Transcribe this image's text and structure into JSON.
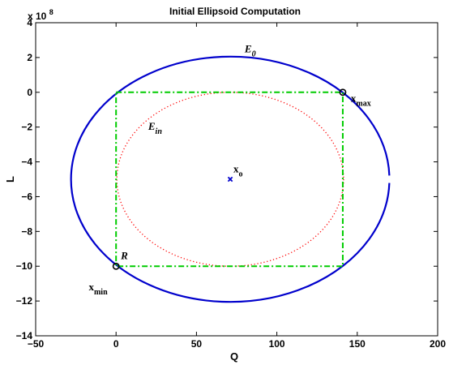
{
  "chart_data": {
    "type": "line",
    "title": "Initial Ellipsoid Computation",
    "xlabel": "Q",
    "ylabel": "L",
    "y_multiplier_label": {
      "base": "x 10",
      "exponent": "8"
    },
    "xlim": [
      -50,
      200
    ],
    "ylim": [
      -14,
      4
    ],
    "x_ticks": [
      -50,
      0,
      50,
      100,
      150,
      200
    ],
    "y_ticks": [
      -14,
      -12,
      -10,
      -8,
      -6,
      -4,
      -2,
      0,
      2,
      4
    ],
    "x_tick_labels": [
      "−50",
      "0",
      "50",
      "100",
      "150",
      "200"
    ],
    "y_tick_labels": [
      "−14",
      "−12",
      "−10",
      "−8",
      "−6",
      "−4",
      "−2",
      "0",
      "2",
      "4"
    ],
    "grid": false,
    "series": [
      {
        "name": "E0",
        "kind": "ellipse",
        "center": [
          71,
          -5
        ],
        "semi_axes": [
          99,
          7.05
        ],
        "gap_at_right": true,
        "color": "#0000cc",
        "style": "solid"
      },
      {
        "name": "Ein",
        "kind": "ellipse",
        "center": [
          71,
          -5
        ],
        "semi_axes": [
          70.5,
          5
        ],
        "color": "#ff0000",
        "style": "dotted"
      },
      {
        "name": "box",
        "kind": "rectangle",
        "x_range": [
          0,
          141
        ],
        "y_range": [
          -10,
          0
        ],
        "color": "#00cc00",
        "style": "dash-dot"
      }
    ],
    "points": [
      {
        "name": "xmax",
        "x": 141,
        "y": 0,
        "marker": "circle",
        "color": "#000000"
      },
      {
        "name": "xmin",
        "x": 0,
        "y": -10,
        "marker": "circle",
        "color": "#000000"
      },
      {
        "name": "xo",
        "x": 71,
        "y": -5,
        "marker": "x",
        "color": "#0000cc"
      }
    ],
    "annotations": [
      {
        "id": "E0",
        "base": "E",
        "sub": "0",
        "x": 80,
        "y": 2.3,
        "italic": true
      },
      {
        "id": "Ein",
        "base": "E",
        "sub": "in",
        "x": 20,
        "y": -2.15,
        "italic": true
      },
      {
        "id": "xmax",
        "base": "x",
        "sub": "max",
        "x": 146,
        "y": -0.55,
        "italic": false
      },
      {
        "id": "xmin",
        "base": "x",
        "sub": "min",
        "x": -17,
        "y": -11.4,
        "italic": false
      },
      {
        "id": "xo",
        "base": "x",
        "sub": "o",
        "x": 73,
        "y": -4.6,
        "italic": false
      },
      {
        "id": "R",
        "base": "R",
        "sub": "",
        "x": 3,
        "y": -9.6,
        "italic": true
      }
    ]
  }
}
